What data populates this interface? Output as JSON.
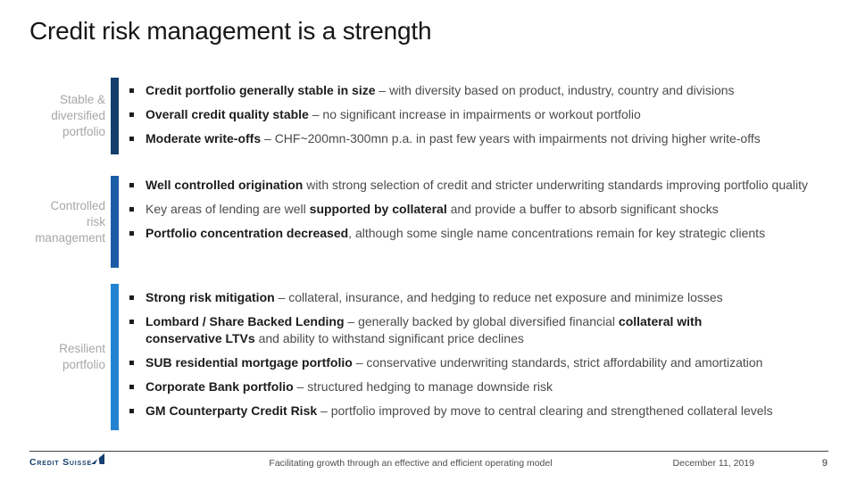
{
  "title": "Credit risk management is a strength",
  "sections": [
    {
      "label": "Stable & diversified portfolio",
      "bar_color": "#123d6d",
      "bullets": [
        {
          "segments": [
            {
              "t": "Credit portfolio generally stable in size",
              "b": true
            },
            {
              "t": " – with diversity based on product, industry, country and divisions",
              "b": false
            }
          ]
        },
        {
          "segments": [
            {
              "t": "Overall credit quality stable",
              "b": true
            },
            {
              "t": " – no significant increase in impairments or workout portfolio",
              "b": false
            }
          ]
        },
        {
          "segments": [
            {
              "t": "Moderate write-offs",
              "b": true
            },
            {
              "t": " – CHF~200mn-300mn p.a. in past few years with impairments not driving higher write-offs",
              "b": false
            }
          ]
        }
      ]
    },
    {
      "label": "Controlled risk management",
      "bar_color": "#1a5da6",
      "bullets": [
        {
          "segments": [
            {
              "t": "Well controlled origination",
              "b": true
            },
            {
              "t": " with strong selection of credit and stricter underwriting standards improving portfolio quality",
              "b": false
            }
          ]
        },
        {
          "segments": [
            {
              "t": "Key areas of lending are well ",
              "b": false
            },
            {
              "t": "supported by collateral",
              "b": true
            },
            {
              "t": " and provide a buffer to absorb significant shocks",
              "b": false
            }
          ]
        },
        {
          "segments": [
            {
              "t": "Portfolio concentration decreased",
              "b": true
            },
            {
              "t": ", although some single name concentrations remain for key strategic clients",
              "b": false
            }
          ]
        }
      ]
    },
    {
      "label": "Resilient portfolio",
      "bar_color": "#2383d1",
      "bullets": [
        {
          "segments": [
            {
              "t": "Strong risk mitigation",
              "b": true
            },
            {
              "t": " – collateral, insurance, and hedging to reduce net exposure and minimize losses",
              "b": false
            }
          ]
        },
        {
          "segments": [
            {
              "t": "Lombard / Share Backed Lending",
              "b": true
            },
            {
              "t": " – generally backed by global diversified financial ",
              "b": false
            },
            {
              "t": "collateral with conservative LTVs",
              "b": true
            },
            {
              "t": " and ability to withstand significant price declines",
              "b": false
            }
          ]
        },
        {
          "segments": [
            {
              "t": "SUB residential mortgage portfolio",
              "b": true
            },
            {
              "t": " – conservative underwriting standards, strict affordability and amortization",
              "b": false
            }
          ]
        },
        {
          "segments": [
            {
              "t": "Corporate Bank portfolio",
              "b": true
            },
            {
              "t": " – structured hedging to manage downside risk",
              "b": false
            }
          ]
        },
        {
          "segments": [
            {
              "t": "GM Counterparty Credit Risk",
              "b": true
            },
            {
              "t": " – portfolio improved by move to central clearing and strengthened collateral levels",
              "b": false
            }
          ]
        }
      ]
    }
  ],
  "footer": {
    "logo_text": "Credit Suisse",
    "logo_color": "#16406f",
    "tagline": "Facilitating growth through an effective and efficient operating model",
    "date": "December 11, 2019",
    "page_number": "9"
  }
}
